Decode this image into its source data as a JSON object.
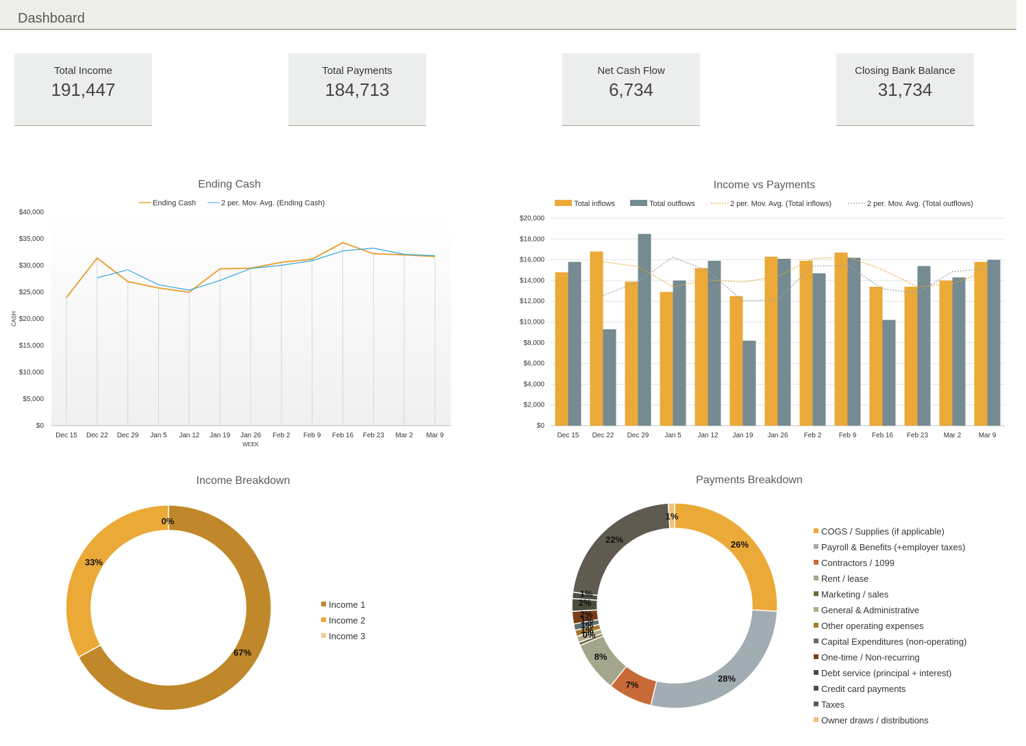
{
  "header": {
    "title": "Dashboard"
  },
  "kpis": [
    {
      "label": "Total Income",
      "value": "191,447"
    },
    {
      "label": "Total Payments",
      "value": "184,713"
    },
    {
      "label": "Net Cash Flow",
      "value": "6,734"
    },
    {
      "label": "Closing Bank Balance",
      "value": "31,734"
    }
  ],
  "chart_data": [
    {
      "type": "line",
      "title": "Ending Cash",
      "xlabel": "WEEK",
      "ylabel": "CASH",
      "ylim": [
        0,
        40000
      ],
      "yticks": [
        "$0",
        "$5,000",
        "$10,000",
        "$15,000",
        "$20,000",
        "$25,000",
        "$30,000",
        "$35,000",
        "$40,000"
      ],
      "categories": [
        "Dec 15",
        "Dec 22",
        "Dec 29",
        "Jan 5",
        "Jan 12",
        "Jan 19",
        "Jan 26",
        "Feb 2",
        "Feb 9",
        "Feb 16",
        "Feb 23",
        "Mar 2",
        "Mar 9"
      ],
      "series": [
        {
          "name": "Ending Cash",
          "color": "#e8a33a",
          "values": [
            24000,
            31400,
            27000,
            25800,
            25000,
            29400,
            29500,
            30600,
            31200,
            34300,
            32200,
            32000,
            31700
          ]
        },
        {
          "name": "2 per. Mov. Avg. (Ending Cash)",
          "color": "#2ea6d8",
          "values": [
            null,
            27700,
            29200,
            26400,
            25400,
            27200,
            29450,
            30050,
            30900,
            32750,
            33250,
            32100,
            31850
          ]
        }
      ]
    },
    {
      "type": "bar",
      "title": "Income vs Payments",
      "ylim": [
        0,
        20000
      ],
      "yticks": [
        "$0",
        "$2,000",
        "$4,000",
        "$6,000",
        "$8,000",
        "$10,000",
        "$12,000",
        "$14,000",
        "$16,000",
        "$18,000",
        "$20,000"
      ],
      "categories": [
        "Dec 15",
        "Dec 22",
        "Dec 29",
        "Jan 5",
        "Jan 12",
        "Jan 19",
        "Jan 26",
        "Feb 2",
        "Feb 9",
        "Feb 16",
        "Feb 23",
        "Mar 2",
        "Mar 9"
      ],
      "series": [
        {
          "name": "Total inflows",
          "color": "#eba937",
          "values": [
            14800,
            16800,
            13900,
            12900,
            15200,
            12500,
            16300,
            15900,
            16700,
            13400,
            13400,
            14000,
            15800
          ]
        },
        {
          "name": "Total outflows",
          "color": "#758a91",
          "values": [
            15800,
            9300,
            18500,
            14000,
            15900,
            8200,
            16100,
            14700,
            16200,
            10200,
            15400,
            14300,
            16000
          ]
        },
        {
          "name": "2 per. Mov. Avg. (Total inflows)",
          "color": "#eba937",
          "values": [
            null,
            15800,
            15350,
            13400,
            14050,
            13850,
            14400,
            16100,
            16300,
            15050,
            13400,
            13700,
            14900
          ]
        },
        {
          "name": "2 per. Mov. Avg. (Total outflows)",
          "color": "#9aa3a6",
          "values": [
            null,
            12550,
            13900,
            16250,
            14950,
            12050,
            12150,
            15400,
            15450,
            13200,
            12800,
            14850,
            15150
          ]
        }
      ]
    },
    {
      "type": "pie",
      "title": "Income Breakdown",
      "labels": [
        "Income 1",
        "Income 2",
        "Income 3"
      ],
      "values": [
        67,
        33,
        0
      ],
      "display": [
        "67%",
        "33%",
        "0%"
      ],
      "colors": [
        "#c0882a",
        "#eba937",
        "#f3c99a"
      ]
    },
    {
      "type": "pie",
      "title": "Payments Breakdown",
      "labels": [
        "COGS / Supplies (if applicable)",
        "Payroll & Benefits (+employer taxes)",
        "Contractors / 1099",
        "Rent / lease",
        "Marketing / sales",
        "General & Administrative",
        "Other operating expenses",
        "Capital Expenditures (non-operating)",
        "One-time / Non-recurring",
        "Debt service (principal + interest)",
        "Credit card payments",
        "Taxes",
        "Owner draws / distributions"
      ],
      "values": [
        26,
        28,
        7,
        8,
        0.5,
        1,
        1,
        1,
        2,
        2,
        1,
        22,
        1
      ],
      "display": [
        "26%",
        "28%",
        "7%",
        "8%",
        "0%",
        "1%",
        "1%",
        "1%",
        "2%",
        "2%",
        "1%",
        "22%",
        "1%"
      ],
      "colors": [
        "#eba937",
        "#a1adb2",
        "#c76a37",
        "#a3a68a",
        "#6f6a46",
        "#b1ab8c",
        "#a57a2f",
        "#5f6e73",
        "#7a3f1a",
        "#4a4f3c",
        "#4b4f42",
        "#5f5b51",
        "#eec37a"
      ]
    }
  ]
}
